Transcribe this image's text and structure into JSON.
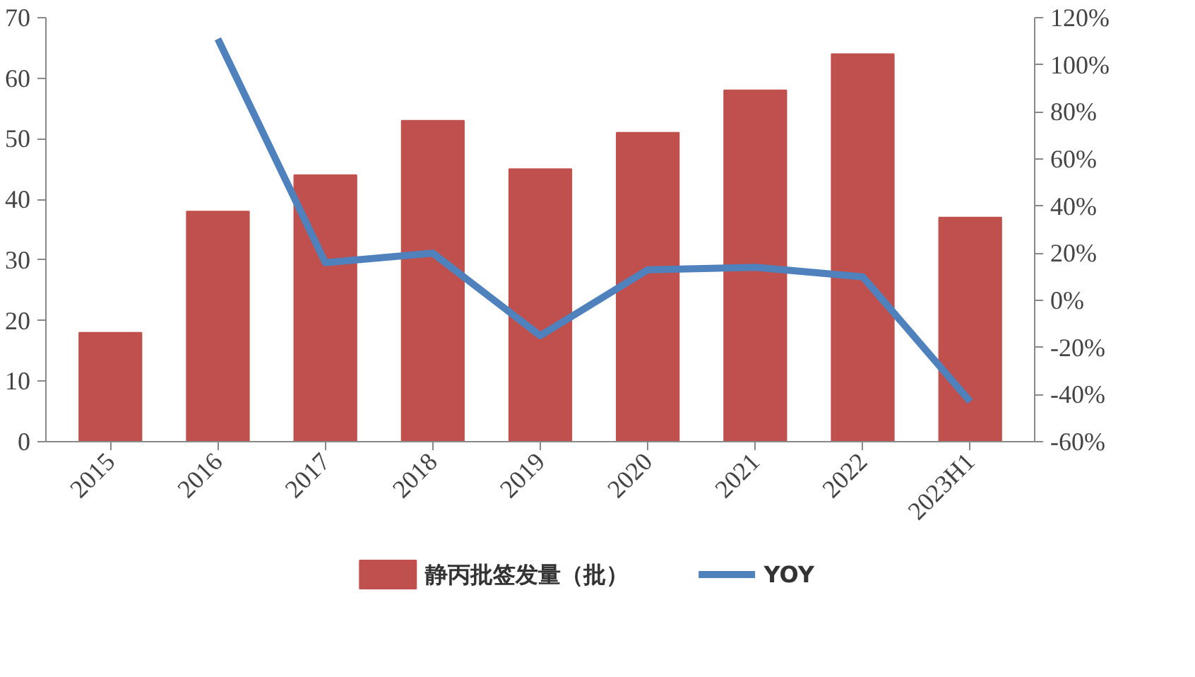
{
  "chart_data": {
    "type": "bar",
    "categories": [
      "2015",
      "2016",
      "2017",
      "2018",
      "2019",
      "2020",
      "2021",
      "2022",
      "2023H1"
    ],
    "series": [
      {
        "name": "静丙批签发量（批）",
        "color": "#c0504d",
        "values": [
          18,
          38,
          44,
          53,
          45,
          51,
          58,
          64,
          37
        ]
      },
      {
        "name": "YOY",
        "type": "line",
        "axis": "y2",
        "color": "#4f81bd",
        "values": [
          null,
          111,
          16,
          20,
          -15,
          13,
          14,
          10,
          -43
        ]
      }
    ],
    "ylim": [
      0,
      70
    ],
    "yticks": [
      0,
      10,
      20,
      30,
      40,
      50,
      60,
      70
    ],
    "y2lim": [
      -60,
      120
    ],
    "y2ticks": [
      {
        "value": -60,
        "label": "-60%"
      },
      {
        "value": -40,
        "label": "-40%"
      },
      {
        "value": -20,
        "label": "-20%"
      },
      {
        "value": 0,
        "label": "0%"
      },
      {
        "value": 20,
        "label": "20%"
      },
      {
        "value": 40,
        "label": "40%"
      },
      {
        "value": 60,
        "label": "60%"
      },
      {
        "value": 80,
        "label": "80%"
      },
      {
        "value": 100,
        "label": "100%"
      },
      {
        "value": 120,
        "label": "120%"
      }
    ],
    "grid": false,
    "legend": "bottom",
    "marker": "none",
    "line_style": "solid"
  }
}
